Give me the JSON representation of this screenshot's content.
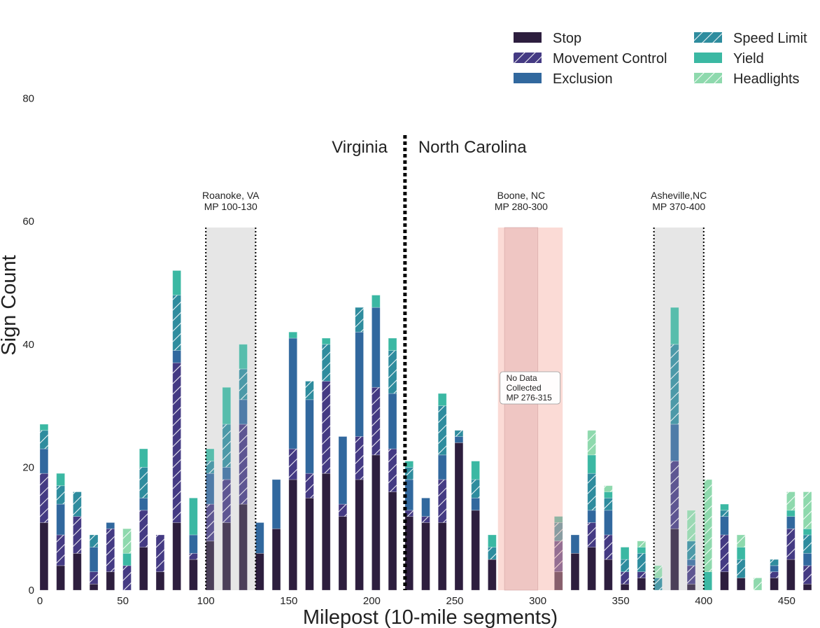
{
  "chart_data": {
    "type": "bar",
    "stacked": true,
    "bin_width": 5,
    "xlabel": "Milepost (10-mile segments)",
    "ylabel": "Sign Count",
    "xlim": [
      0,
      470
    ],
    "ylim": [
      0,
      80
    ],
    "x_ticks": [
      0,
      50,
      100,
      150,
      200,
      250,
      300,
      350,
      400,
      450
    ],
    "y_ticks": [
      0,
      20,
      40,
      60,
      80
    ],
    "grid": false,
    "legend_position": "top-right",
    "x": [
      0,
      10,
      20,
      30,
      40,
      50,
      60,
      70,
      80,
      90,
      100,
      110,
      120,
      130,
      140,
      150,
      160,
      170,
      180,
      190,
      200,
      210,
      220,
      230,
      240,
      250,
      260,
      270,
      280,
      290,
      300,
      310,
      320,
      330,
      340,
      350,
      360,
      370,
      380,
      390,
      400,
      410,
      420,
      430,
      440,
      450,
      460
    ],
    "series": [
      {
        "name": "Stop",
        "color": "#2d1e3e",
        "hatch": false,
        "values": [
          11,
          4,
          6,
          1,
          3,
          0,
          7,
          3,
          11,
          5,
          8,
          11,
          14,
          6,
          10,
          18,
          15,
          19,
          12,
          18,
          22,
          16,
          12,
          11,
          11,
          24,
          13,
          5,
          0,
          0,
          0,
          3,
          6,
          7,
          5,
          1,
          2,
          0,
          10,
          1,
          0,
          3,
          2,
          0,
          2,
          5,
          1
        ]
      },
      {
        "name": "Movement Control",
        "color": "#443a83",
        "hatch": true,
        "values": [
          8,
          5,
          6,
          2,
          7,
          4,
          6,
          6,
          26,
          1,
          6,
          7,
          13,
          0,
          0,
          5,
          4,
          15,
          2,
          7,
          11,
          7,
          1,
          1,
          7,
          0,
          0,
          0,
          0,
          0,
          0,
          5,
          0,
          4,
          4,
          2,
          1,
          0,
          11,
          3,
          0,
          6,
          0,
          0,
          1,
          5,
          3
        ]
      },
      {
        "name": "Exclusion",
        "color": "#31689e",
        "hatch": false,
        "values": [
          4,
          5,
          0,
          4,
          1,
          0,
          2,
          0,
          2,
          3,
          5,
          2,
          4,
          5,
          8,
          18,
          12,
          0,
          11,
          17,
          13,
          9,
          5,
          3,
          4,
          1,
          2,
          0,
          0,
          0,
          0,
          0,
          3,
          2,
          4,
          0,
          0,
          0,
          6,
          1,
          0,
          3,
          0,
          0,
          1,
          2,
          2
        ]
      },
      {
        "name": "Speed Limit",
        "color": "#2e8c9e",
        "hatch": true,
        "values": [
          3,
          3,
          4,
          2,
          0,
          0,
          5,
          0,
          9,
          0,
          2,
          7,
          5,
          0,
          0,
          0,
          3,
          6,
          0,
          4,
          0,
          7,
          2,
          0,
          8,
          1,
          3,
          2,
          0,
          0,
          0,
          3,
          0,
          6,
          2,
          2,
          3,
          2,
          13,
          3,
          0,
          1,
          3,
          0,
          1,
          0,
          3
        ]
      },
      {
        "name": "Yield",
        "color": "#3bb8a3",
        "hatch": false,
        "values": [
          1,
          2,
          0,
          0,
          0,
          2,
          3,
          0,
          4,
          6,
          2,
          6,
          4,
          0,
          0,
          1,
          0,
          1,
          0,
          0,
          2,
          2,
          1,
          0,
          2,
          0,
          3,
          2,
          0,
          0,
          0,
          1,
          0,
          3,
          1,
          2,
          1,
          0,
          6,
          0,
          3,
          1,
          2,
          0,
          0,
          1,
          1
        ]
      },
      {
        "name": "Headlights",
        "color": "#8ed9ad",
        "hatch": true,
        "values": [
          0,
          0,
          0,
          0,
          0,
          4,
          0,
          0,
          0,
          0,
          0,
          0,
          0,
          0,
          0,
          0,
          0,
          0,
          0,
          0,
          0,
          0,
          0,
          0,
          0,
          0,
          0,
          0,
          0,
          0,
          0,
          0,
          0,
          4,
          1,
          0,
          1,
          2,
          0,
          5,
          15,
          0,
          2,
          2,
          0,
          3,
          6
        ]
      }
    ],
    "regions": [
      {
        "label": "Roanoke, VA",
        "sublabel": "MP 100-130",
        "start": 100,
        "end": 130,
        "style": "gray"
      },
      {
        "label": "Boone, NC",
        "sublabel": "MP 280-300",
        "start": 280,
        "end": 300,
        "style": "red"
      },
      {
        "label": "Asheville,NC",
        "sublabel": "MP 370-400",
        "start": 370,
        "end": 400,
        "style": "gray"
      }
    ],
    "no_data": {
      "start": 276,
      "end": 315,
      "lines": [
        "No Data",
        "Collected",
        "MP 276-315"
      ]
    },
    "state_line": {
      "x": 220,
      "left_label": "Virginia",
      "right_label": "North Carolina"
    }
  }
}
